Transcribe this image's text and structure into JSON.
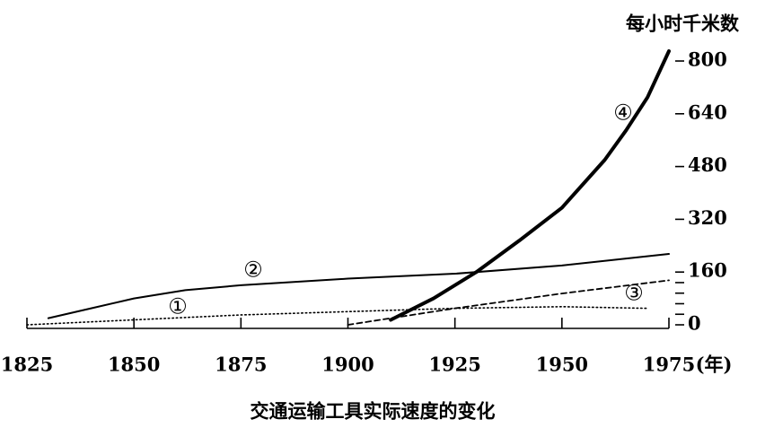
{
  "chart_data": {
    "type": "line",
    "title": "交通运输工具实际速度的变化",
    "y_label": "每小时千米数",
    "x_unit": "(年)",
    "xlim": [
      1825,
      1975
    ],
    "xticks": [
      1825,
      1850,
      1875,
      1900,
      1925,
      1950,
      1975
    ],
    "ylim": [
      0,
      800
    ],
    "yticks": [
      0,
      160,
      320,
      480,
      640,
      800
    ],
    "y_minor_ticks": [
      32,
      64,
      96,
      128
    ],
    "series": [
      {
        "name": "①",
        "color": "#000000",
        "line_style": "dotted",
        "x": [
          1825,
          1850,
          1875,
          1900,
          1925,
          1950,
          1970
        ],
        "values": [
          0,
          15,
          30,
          40,
          50,
          55,
          50
        ]
      },
      {
        "name": "②",
        "color": "#000000",
        "line_style": "solid",
        "x": [
          1830,
          1840,
          1850,
          1862,
          1875,
          1900,
          1925,
          1950,
          1975
        ],
        "values": [
          20,
          50,
          80,
          105,
          120,
          140,
          155,
          180,
          215
        ]
      },
      {
        "name": "③",
        "color": "#000000",
        "line_style": "dashed",
        "x": [
          1900,
          1925,
          1950,
          1975
        ],
        "values": [
          0,
          50,
          95,
          135
        ]
      },
      {
        "name": "④",
        "color": "#000000",
        "line_style": "bold",
        "x": [
          1910,
          1920,
          1930,
          1940,
          1950,
          1960,
          1965,
          1970,
          1975
        ],
        "values": [
          15,
          80,
          160,
          255,
          355,
          500,
          590,
          690,
          830
        ]
      }
    ]
  }
}
